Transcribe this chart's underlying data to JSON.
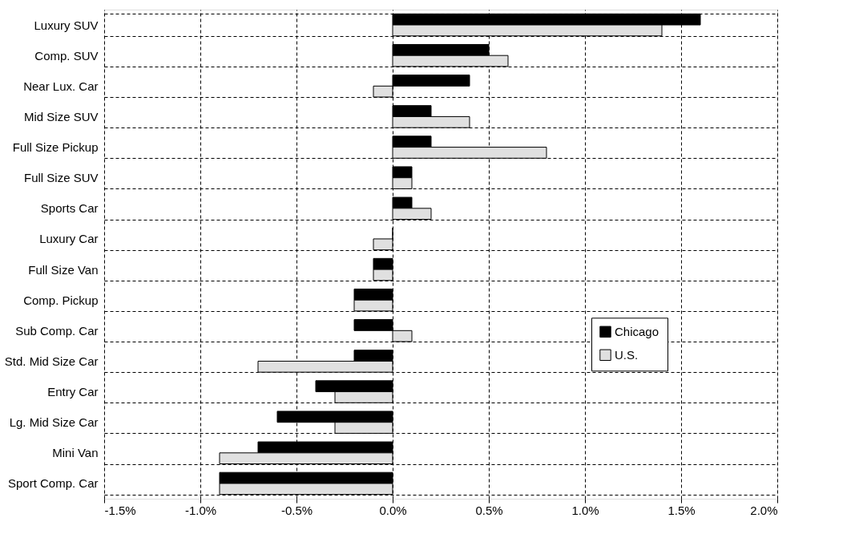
{
  "chart_data": {
    "type": "bar",
    "orientation": "horizontal",
    "categories": [
      "Luxury SUV",
      "Comp. SUV",
      "Near Lux. Car",
      "Mid Size SUV",
      "Full Size Pickup",
      "Full Size SUV",
      "Sports Car",
      "Luxury Car",
      "Full Size Van",
      "Comp. Pickup",
      "Sub Comp. Car",
      "Std. Mid Size Car",
      "Entry Car",
      "Lg. Mid Size Car",
      "Mini Van",
      "Sport Comp. Car"
    ],
    "series": [
      {
        "name": "Chicago",
        "color": "#000000",
        "values": [
          1.6,
          0.5,
          0.4,
          0.2,
          0.2,
          0.1,
          0.1,
          0.0,
          -0.1,
          -0.2,
          -0.2,
          -0.2,
          -0.4,
          -0.6,
          -0.7,
          -0.9
        ]
      },
      {
        "name": "U.S.",
        "color": "#e0e0e0",
        "values": [
          1.4,
          0.6,
          -0.1,
          0.4,
          0.8,
          0.1,
          0.2,
          -0.1,
          -0.1,
          -0.2,
          0.1,
          -0.7,
          -0.3,
          -0.3,
          -0.9,
          -0.9
        ]
      }
    ],
    "xlim": [
      -1.5,
      2.0
    ],
    "xticks": [
      {
        "value": -1.5,
        "label": "-1.5%"
      },
      {
        "value": -1.0,
        "label": "-1.0%"
      },
      {
        "value": -0.5,
        "label": "-0.5%"
      },
      {
        "value": 0.0,
        "label": "0.0%"
      },
      {
        "value": 0.5,
        "label": "0.5%"
      },
      {
        "value": 1.0,
        "label": "1.0%"
      },
      {
        "value": 1.5,
        "label": "1.5%"
      },
      {
        "value": 2.0,
        "label": "2.0%"
      }
    ],
    "grid": true,
    "legend": "right"
  }
}
